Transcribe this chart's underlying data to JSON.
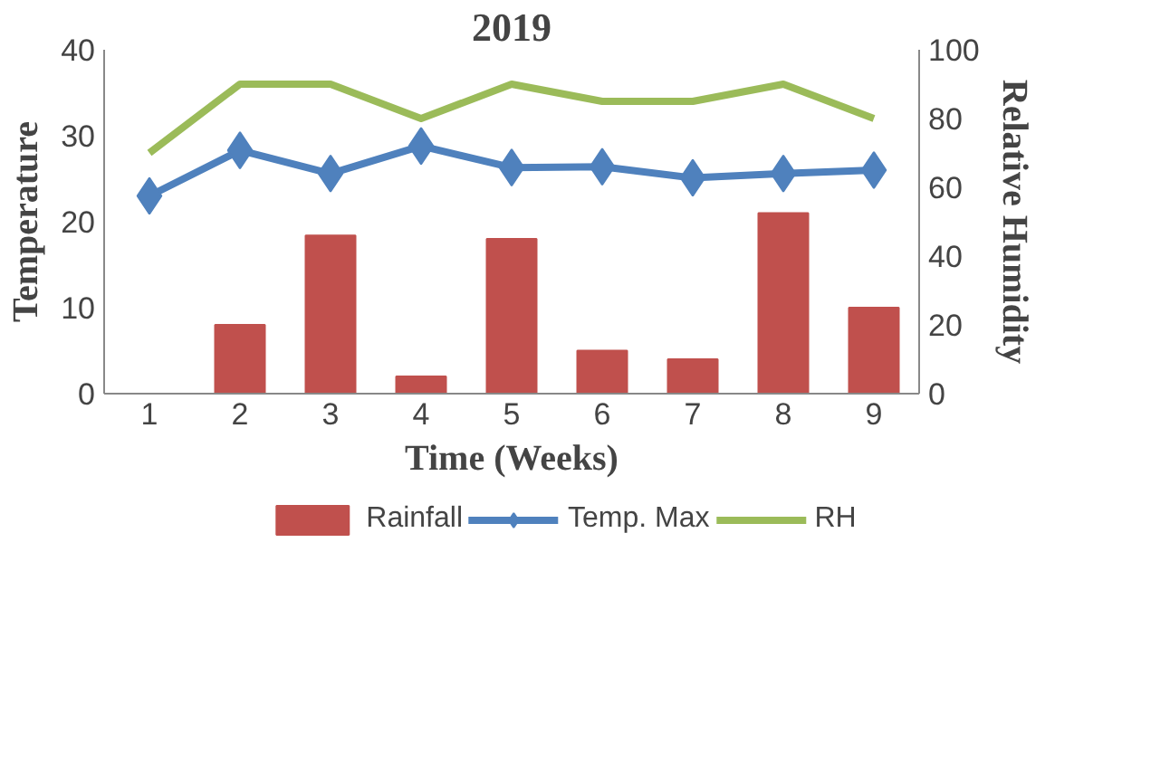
{
  "chart_data": {
    "type": "bar",
    "title": "2019",
    "xlabel": "Time (Weeks)",
    "ylabel": "Temperature",
    "y2label": "Relative Humidity",
    "categories": [
      "1",
      "2",
      "3",
      "4",
      "5",
      "6",
      "7",
      "8",
      "9"
    ],
    "series": [
      {
        "name": "Rainfall",
        "color": "#c0504d",
        "values": [
          0,
          8,
          18.4,
          2,
          18,
          5,
          4,
          21,
          10
        ]
      },
      {
        "name": "Temp. Max",
        "type": "line",
        "color": "#4f81bd",
        "marker": "diamond",
        "values": [
          23,
          28.3,
          25.6,
          28.8,
          26.3,
          26.4,
          25.1,
          25.6,
          26
        ]
      },
      {
        "name": "RH",
        "type": "line",
        "color": "#9bbb59",
        "axis": "y2",
        "values": [
          70,
          90,
          90,
          80,
          90,
          85,
          85,
          90,
          80
        ]
      }
    ],
    "ylim": [
      0,
      40
    ],
    "yticks": [
      0,
      10,
      20,
      30,
      40
    ],
    "y2lim": [
      0,
      100
    ],
    "y2ticks": [
      0,
      20,
      40,
      60,
      80,
      100
    ],
    "grid": false,
    "legend": "bottom"
  }
}
